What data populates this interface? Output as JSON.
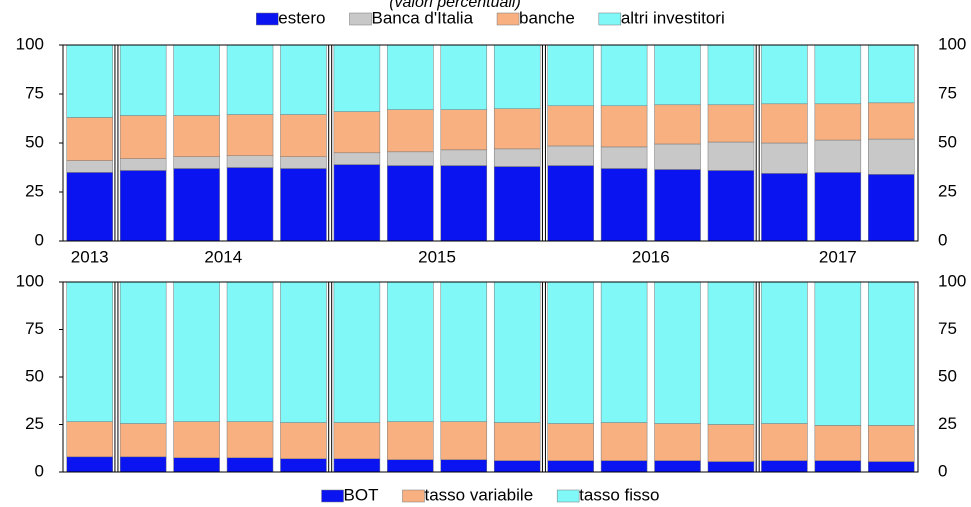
{
  "chart_data": [
    {
      "type": "stacked_bar",
      "subtitle": "(valori percentuali)",
      "categories": [
        null,
        null,
        null,
        null,
        null,
        null,
        null,
        null,
        null,
        null,
        null,
        null,
        null,
        null,
        null,
        null
      ],
      "x_groups": [
        {
          "label": "2013",
          "size": 1
        },
        {
          "label": "2014",
          "size": 4
        },
        {
          "label": "2015",
          "size": 4
        },
        {
          "label": "2016",
          "size": 4
        },
        {
          "label": "2017",
          "size": 3
        }
      ],
      "series": [
        {
          "name": "estero",
          "color": "#0a14f0",
          "values": [
            35,
            36,
            37,
            37.5,
            37,
            39,
            38.5,
            38.5,
            38,
            38.5,
            37,
            36.5,
            36,
            34.5,
            35,
            34
          ]
        },
        {
          "name": "Banca d'Italia",
          "color": "#c8c8c8",
          "values": [
            6,
            6,
            6,
            6,
            6,
            6,
            7,
            8,
            9,
            10,
            11,
            13,
            14.5,
            15.5,
            16.5,
            18
          ]
        },
        {
          "name": "banche",
          "color": "#f8b080",
          "values": [
            22,
            22,
            21,
            21,
            21.5,
            21,
            21.5,
            20.5,
            20.5,
            20.5,
            21,
            20,
            19,
            20,
            18.5,
            18.5
          ]
        },
        {
          "name": "altri investitori",
          "color": "#80f8f8",
          "values": [
            37,
            36,
            36,
            35.5,
            35.5,
            34,
            33,
            33,
            32.5,
            31,
            31,
            30.5,
            30.5,
            30,
            30,
            29.5
          ]
        }
      ],
      "ylim": [
        0,
        100
      ],
      "yticks": [
        0,
        25,
        50,
        75,
        100
      ],
      "legend": "top"
    },
    {
      "type": "stacked_bar",
      "categories": [
        null,
        null,
        null,
        null,
        null,
        null,
        null,
        null,
        null,
        null,
        null,
        null,
        null,
        null,
        null,
        null
      ],
      "series": [
        {
          "name": "BOT",
          "color": "#0a14f0",
          "values": [
            8,
            8,
            7.5,
            7.5,
            7,
            7,
            6.5,
            6.5,
            6,
            6,
            6,
            6,
            5.5,
            6,
            6,
            5.5
          ]
        },
        {
          "name": "tasso variabile",
          "color": "#f8b080",
          "values": [
            18.5,
            17.5,
            19,
            19,
            19,
            19,
            20,
            20,
            20,
            19.5,
            20,
            19.5,
            19.5,
            19.5,
            18.5,
            19
          ]
        },
        {
          "name": "tasso fisso",
          "color": "#80f8f8",
          "values": [
            73.5,
            74.5,
            73.5,
            73.5,
            74,
            74,
            73.5,
            73.5,
            74,
            74.5,
            74,
            74.5,
            75,
            74.5,
            75.5,
            75.5
          ]
        }
      ],
      "ylim": [
        0,
        100
      ],
      "yticks": [
        0,
        25,
        50,
        75,
        100
      ],
      "legend": "bottom"
    }
  ]
}
